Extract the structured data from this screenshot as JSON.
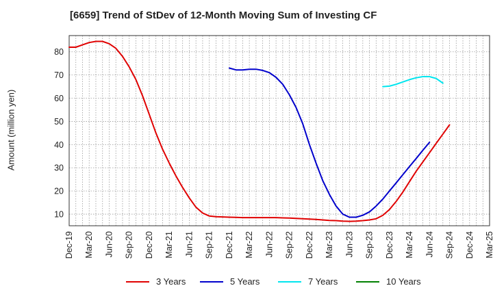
{
  "chart_data": {
    "type": "line",
    "title": "[6659]  Trend of StDev of 12-Month Moving Sum of Investing CF",
    "xlabel": "",
    "ylabel": "Amount (million yen)",
    "ylim": [
      5,
      87
    ],
    "yticks": [
      10,
      20,
      30,
      40,
      50,
      60,
      70,
      80
    ],
    "x_tick_labels": [
      "Dec-19",
      "Mar-20",
      "Jun-20",
      "Sep-20",
      "Dec-20",
      "Mar-21",
      "Jun-21",
      "Sep-21",
      "Dec-21",
      "Mar-22",
      "Jun-22",
      "Sep-22",
      "Dec-22",
      "Mar-23",
      "Jun-23",
      "Sep-23",
      "Dec-23",
      "Mar-24",
      "Jun-24",
      "Sep-24",
      "Dec-24",
      "Mar-25"
    ],
    "grid": true,
    "legend_position": "bottom",
    "series": [
      {
        "name": "3 Years",
        "color": "#e00000",
        "values": [
          82,
          82,
          83,
          84,
          84.5,
          84.5,
          83.5,
          81.5,
          78,
          73.5,
          68,
          61,
          53,
          45,
          38,
          32,
          26.5,
          21.5,
          17,
          13,
          10.5,
          9.2,
          8.9,
          8.8,
          8.7,
          8.6,
          8.5,
          8.5,
          8.5,
          8.5,
          8.5,
          8.5,
          8.4,
          8.3,
          8.2,
          8.0,
          7.9,
          7.7,
          7.5,
          7.3,
          7.2,
          7.0,
          6.9,
          7.0,
          7.2,
          7.5,
          8.0,
          9.5,
          12,
          15.5,
          19.5,
          24,
          28.5,
          32.5,
          36.5,
          40.5,
          44.5,
          48.5
        ]
      },
      {
        "name": "5 Years",
        "color": "#0000cc",
        "values": [
          null,
          null,
          null,
          null,
          null,
          null,
          null,
          null,
          null,
          null,
          null,
          null,
          null,
          null,
          null,
          null,
          null,
          null,
          null,
          null,
          null,
          null,
          null,
          null,
          73,
          72.2,
          72.2,
          72.5,
          72.5,
          72,
          71,
          69,
          66,
          61.5,
          56,
          49,
          40,
          32,
          24.5,
          18.5,
          13.5,
          10,
          8.7,
          8.7,
          9.5,
          11,
          13.5,
          16.5,
          20,
          23.5,
          27,
          30.5,
          34,
          37.5,
          41
        ]
      },
      {
        "name": "7 Years",
        "color": "#00e5ee",
        "values": [
          null,
          null,
          null,
          null,
          null,
          null,
          null,
          null,
          null,
          null,
          null,
          null,
          null,
          null,
          null,
          null,
          null,
          null,
          null,
          null,
          null,
          null,
          null,
          null,
          null,
          null,
          null,
          null,
          null,
          null,
          null,
          null,
          null,
          null,
          null,
          null,
          null,
          null,
          null,
          null,
          null,
          null,
          null,
          null,
          null,
          null,
          null,
          65,
          65.2,
          66,
          67,
          68,
          68.8,
          69.3,
          69.3,
          68.5,
          66.5
        ]
      },
      {
        "name": "10 Years",
        "color": "#008000",
        "values": []
      }
    ]
  }
}
